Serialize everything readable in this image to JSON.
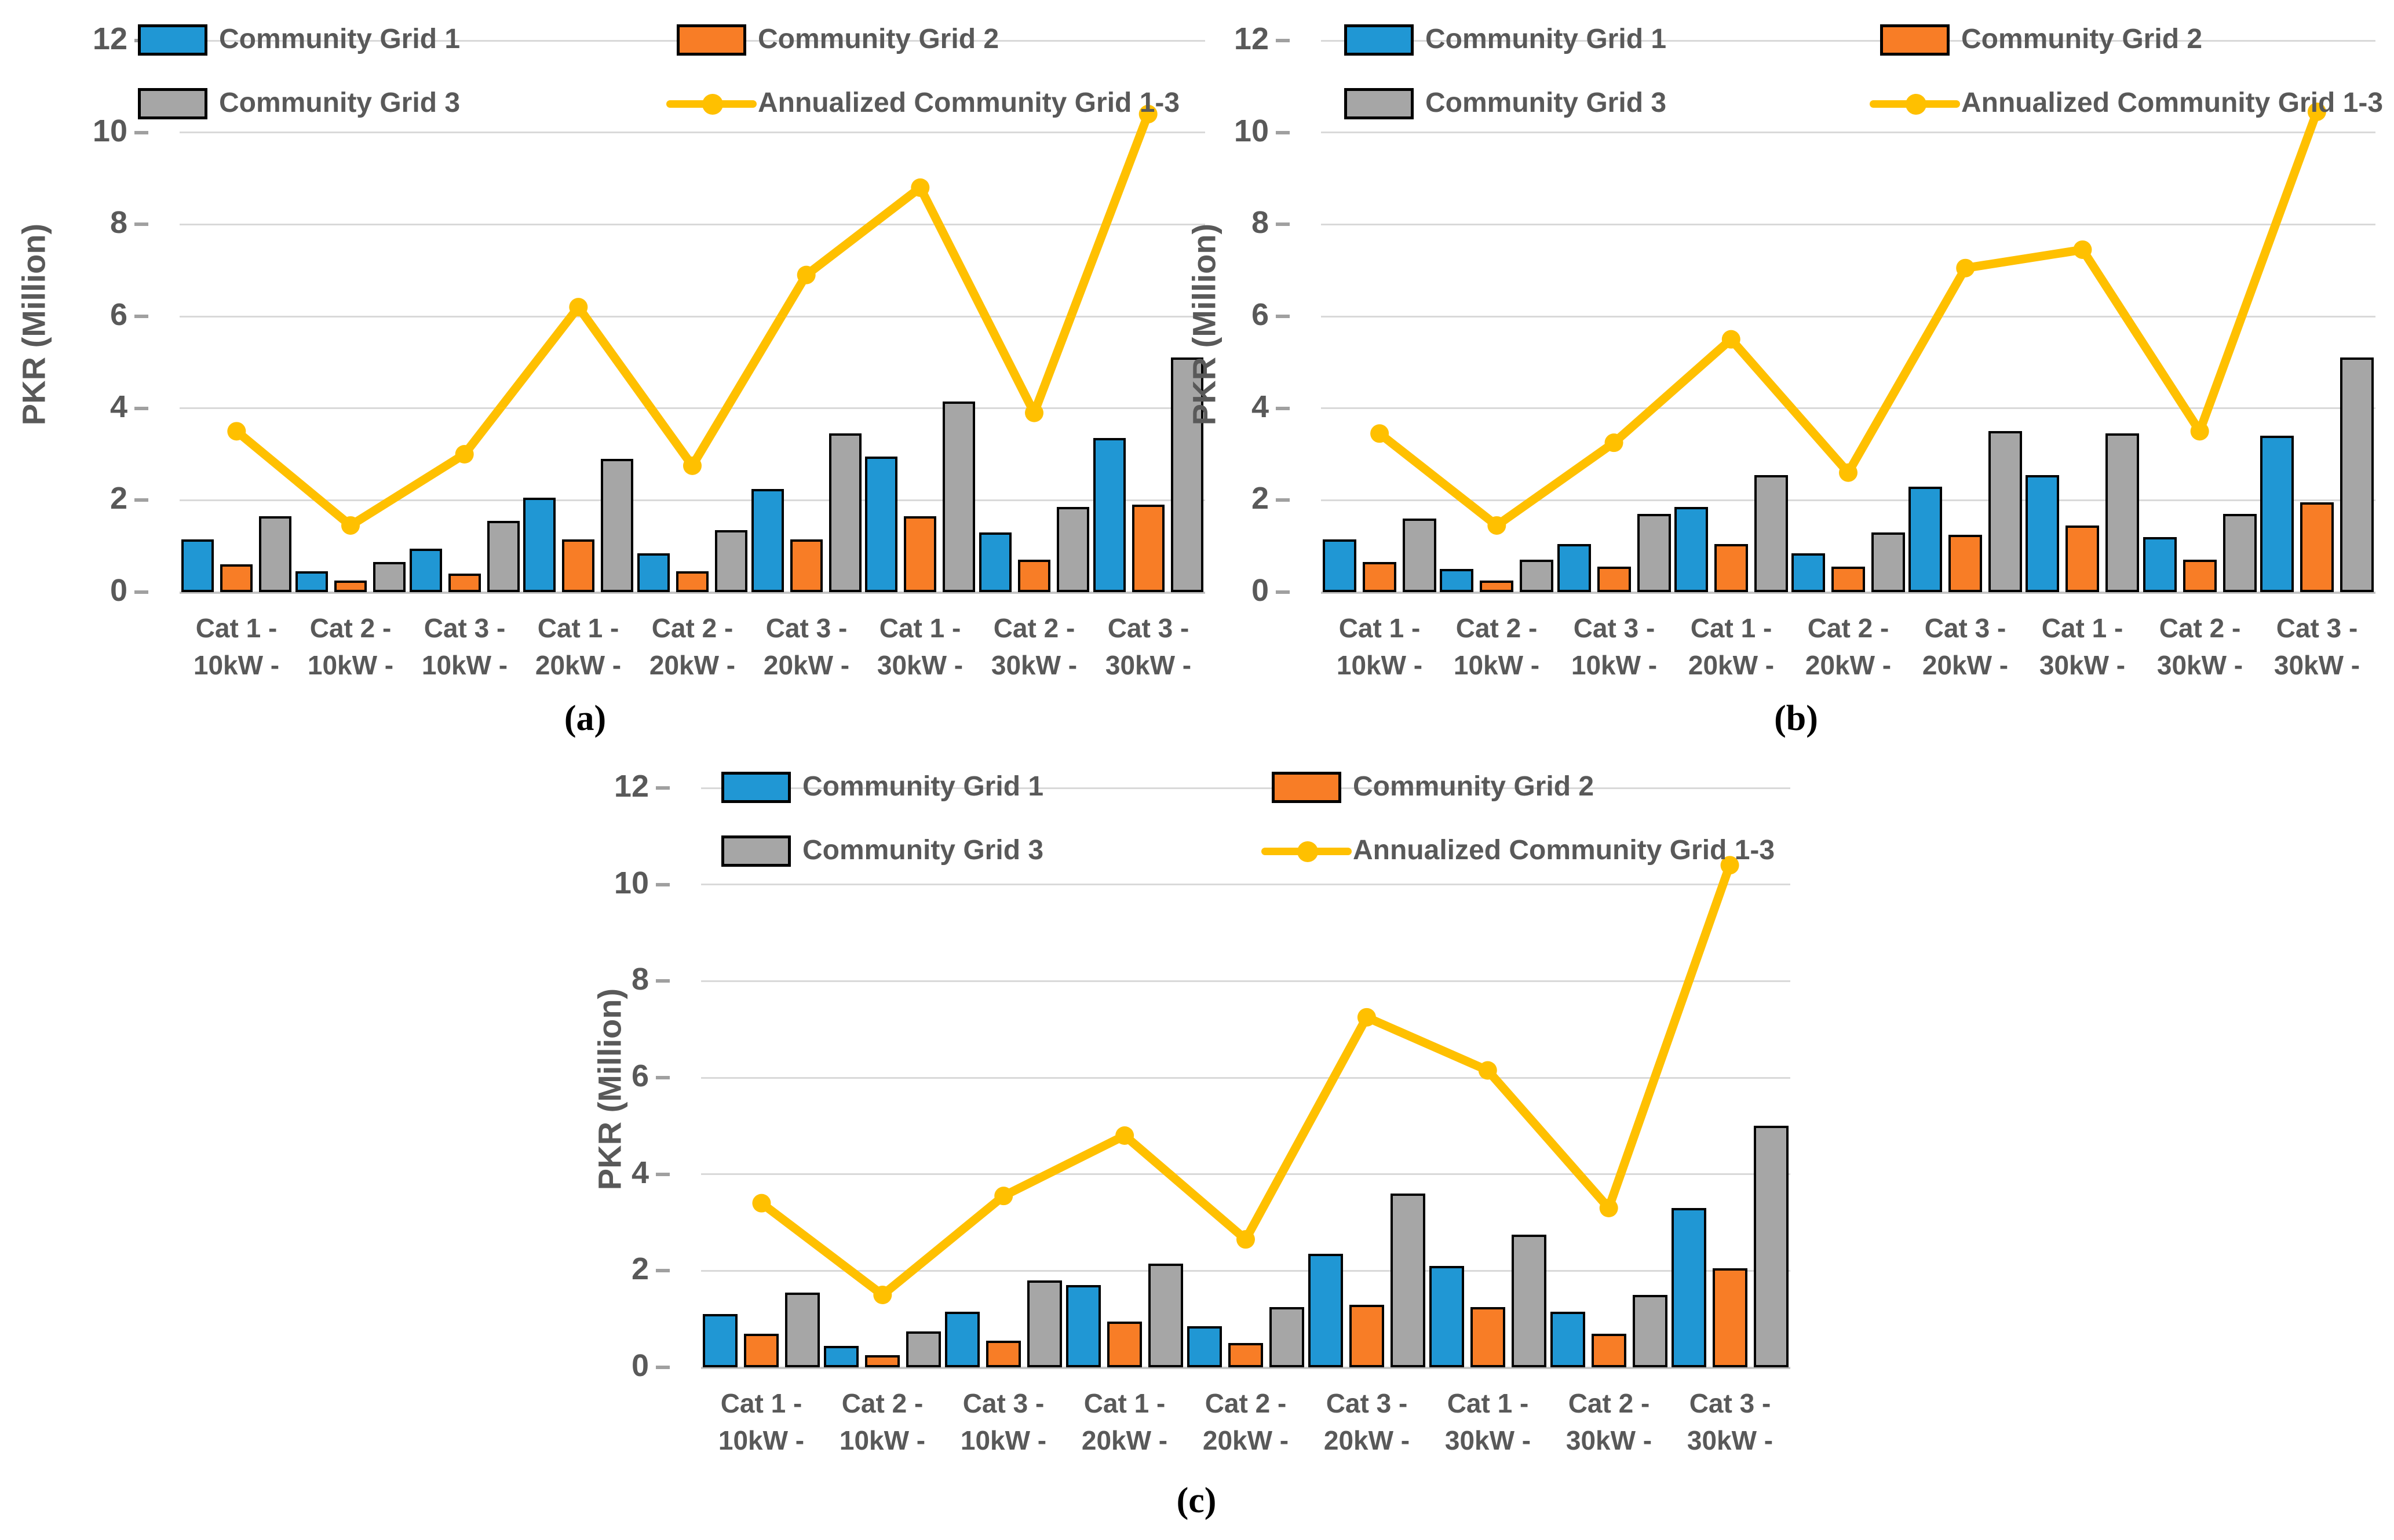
{
  "figure": {
    "ylabel": "PKR (Million)",
    "legend": {
      "grid1": "Community Grid 1",
      "grid2": "Community Grid 2",
      "grid3": "Community Grid 3",
      "line": "Annualized Community Grid 1-3"
    },
    "colors": {
      "grid1": "#2097D4",
      "grid2": "#F87D26",
      "grid3": "#A6A6A6",
      "line": "#FFC000",
      "text": "#595959",
      "gridline": "#D9D9D9",
      "baseline": "#C4C4C4",
      "bar_border": "#000000",
      "tick_dash": "#A0A0A0"
    }
  },
  "chart_data": [
    {
      "id": "a",
      "caption": "(a)",
      "type": "bar+line",
      "ylim": [
        0,
        12
      ],
      "yticks": [
        0,
        2,
        4,
        6,
        8,
        10,
        12
      ],
      "categories": [
        [
          "Cat 1 -",
          "10kW -"
        ],
        [
          "Cat 2 -",
          "10kW -"
        ],
        [
          "Cat 3 -",
          "10kW -"
        ],
        [
          "Cat 1 -",
          "20kW -"
        ],
        [
          "Cat 2 -",
          "20kW -"
        ],
        [
          "Cat 3 -",
          "20kW -"
        ],
        [
          "Cat 1 -",
          "30kW -"
        ],
        [
          "Cat 2 -",
          "30kW -"
        ],
        [
          "Cat 3 -",
          "30kW -"
        ]
      ],
      "series": [
        {
          "name": "Community Grid 1",
          "color_key": "grid1",
          "values": [
            1.15,
            0.45,
            0.95,
            2.05,
            0.85,
            2.25,
            2.95,
            1.3,
            3.35
          ]
        },
        {
          "name": "Community Grid 2",
          "color_key": "grid2",
          "values": [
            0.6,
            0.25,
            0.4,
            1.15,
            0.45,
            1.15,
            1.65,
            0.7,
            1.9
          ]
        },
        {
          "name": "Community Grid 3",
          "color_key": "grid3",
          "values": [
            1.65,
            0.65,
            1.55,
            2.9,
            1.35,
            3.45,
            4.15,
            1.85,
            5.1
          ]
        }
      ],
      "line_series": {
        "name": "Annualized Community Grid 1-3",
        "values": [
          3.5,
          1.45,
          3.0,
          6.2,
          2.75,
          6.9,
          8.8,
          3.9,
          10.4
        ]
      }
    },
    {
      "id": "b",
      "caption": "(b)",
      "type": "bar+line",
      "ylim": [
        0,
        12
      ],
      "yticks": [
        0,
        2,
        4,
        6,
        8,
        10,
        12
      ],
      "categories": [
        [
          "Cat 1 -",
          "10kW -"
        ],
        [
          "Cat 2 -",
          "10kW -"
        ],
        [
          "Cat 3 -",
          "10kW -"
        ],
        [
          "Cat 1 -",
          "20kW -"
        ],
        [
          "Cat 2 -",
          "20kW -"
        ],
        [
          "Cat 3 -",
          "20kW -"
        ],
        [
          "Cat 1 -",
          "30kW -"
        ],
        [
          "Cat 2 -",
          "30kW -"
        ],
        [
          "Cat 3 -",
          "30kW -"
        ]
      ],
      "series": [
        {
          "name": "Community Grid 1",
          "color_key": "grid1",
          "values": [
            1.15,
            0.5,
            1.05,
            1.85,
            0.85,
            2.3,
            2.55,
            1.2,
            3.4
          ]
        },
        {
          "name": "Community Grid 2",
          "color_key": "grid2",
          "values": [
            0.65,
            0.25,
            0.55,
            1.05,
            0.55,
            1.25,
            1.45,
            0.7,
            1.95
          ]
        },
        {
          "name": "Community Grid 3",
          "color_key": "grid3",
          "values": [
            1.6,
            0.7,
            1.7,
            2.55,
            1.3,
            3.5,
            3.45,
            1.7,
            5.1
          ]
        }
      ],
      "line_series": {
        "name": "Annualized Community Grid 1-3",
        "values": [
          3.45,
          1.45,
          3.25,
          5.5,
          2.6,
          7.05,
          7.45,
          3.5,
          10.45
        ]
      }
    },
    {
      "id": "c",
      "caption": "(c)",
      "type": "bar+line",
      "ylim": [
        0,
        12
      ],
      "yticks": [
        0,
        2,
        4,
        6,
        8,
        10,
        12
      ],
      "categories": [
        [
          "Cat 1 -",
          "10kW -"
        ],
        [
          "Cat 2 -",
          "10kW -"
        ],
        [
          "Cat 3 -",
          "10kW -"
        ],
        [
          "Cat 1 -",
          "20kW -"
        ],
        [
          "Cat 2 -",
          "20kW -"
        ],
        [
          "Cat 3 -",
          "20kW -"
        ],
        [
          "Cat 1 -",
          "30kW -"
        ],
        [
          "Cat 2 -",
          "30kW -"
        ],
        [
          "Cat 3 -",
          "30kW -"
        ]
      ],
      "series": [
        {
          "name": "Community Grid 1",
          "color_key": "grid1",
          "values": [
            1.1,
            0.45,
            1.15,
            1.7,
            0.85,
            2.35,
            2.1,
            1.15,
            3.3
          ]
        },
        {
          "name": "Community Grid 2",
          "color_key": "grid2",
          "values": [
            0.7,
            0.25,
            0.55,
            0.95,
            0.5,
            1.3,
            1.25,
            0.7,
            2.05
          ]
        },
        {
          "name": "Community Grid 3",
          "color_key": "grid3",
          "values": [
            1.55,
            0.75,
            1.8,
            2.15,
            1.25,
            3.6,
            2.75,
            1.5,
            5.0
          ]
        }
      ],
      "line_series": {
        "name": "Annualized Community Grid 1-3",
        "values": [
          3.4,
          1.5,
          3.55,
          4.8,
          2.65,
          7.25,
          6.15,
          3.3,
          10.4
        ]
      }
    }
  ]
}
